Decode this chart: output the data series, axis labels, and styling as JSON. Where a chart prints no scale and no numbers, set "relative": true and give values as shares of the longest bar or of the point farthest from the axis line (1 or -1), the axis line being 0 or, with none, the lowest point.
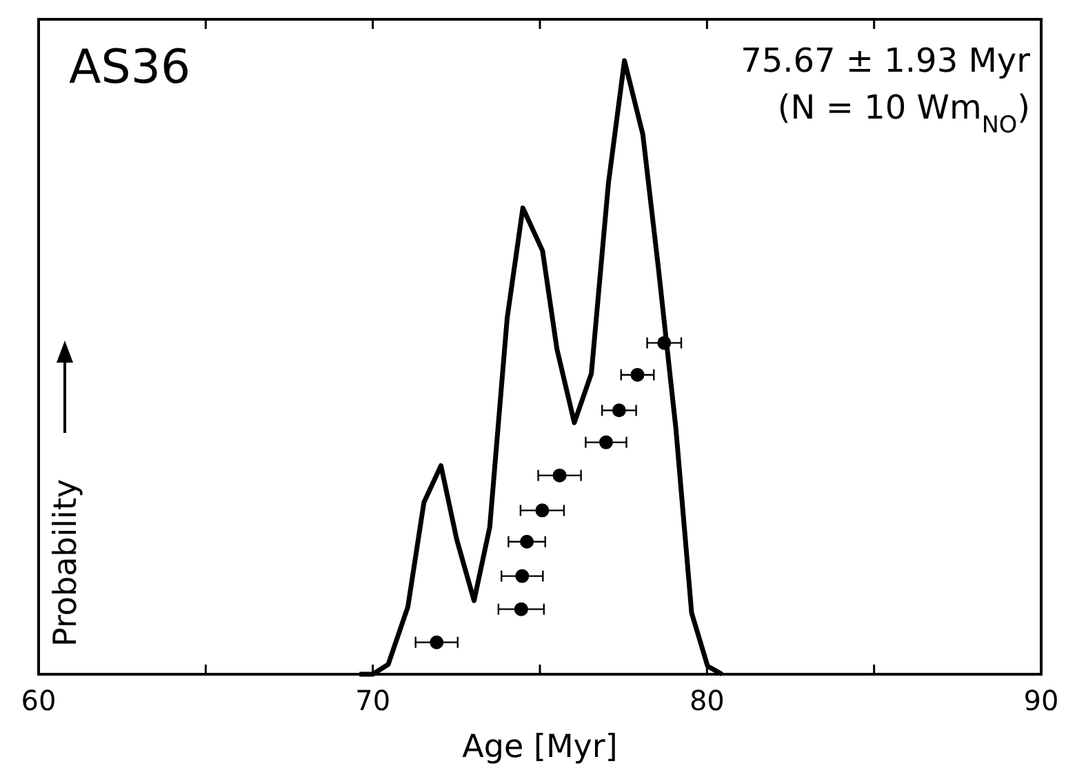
{
  "chart_data": {
    "type": "line",
    "relative": true,
    "xlabel": "Age [Myr]",
    "ylabel": "Probability",
    "xlim": [
      60,
      90
    ],
    "xticks": [
      60,
      {
        "value": 65,
        "label": null
      },
      70,
      {
        "value": 75,
        "label": null
      },
      80,
      {
        "value": 85,
        "label": null
      },
      90
    ],
    "grid": false,
    "annotations": [
      "AS36",
      "75.67 ± 1.93 Myr",
      "(N = 10 Wm$_{NO}$)"
    ],
    "series": [
      {
        "color": "#000000",
        "marker": "none",
        "x": [
          69.6,
          70.0,
          70.46,
          71.05,
          71.53,
          72.04,
          72.51,
          73.03,
          73.5,
          74.02,
          74.49,
          75.08,
          75.51,
          76.03,
          76.54,
          77.05,
          77.53,
          78.08,
          78.55,
          79.07,
          79.54,
          80.02,
          80.45
        ],
        "values": [
          0,
          0,
          0.016,
          0.11,
          0.28,
          0.34,
          0.22,
          0.12,
          0.24,
          0.58,
          0.76,
          0.69,
          0.53,
          0.41,
          0.49,
          0.8,
          1,
          0.88,
          0.66,
          0.4,
          0.1,
          0.013,
          0
        ]
      },
      {
        "type": "scatter",
        "color": "#000000",
        "marker": "circle",
        "x": [
          71.91,
          74.44,
          74.47,
          74.61,
          75.07,
          75.59,
          76.98,
          77.37,
          77.92,
          78.72
        ],
        "values": [
          0.052,
          0.106,
          0.16,
          0.216,
          0.267,
          0.324,
          0.378,
          0.43,
          0.488,
          0.54
        ],
        "xerrors": [
          0.63,
          0.68,
          0.62,
          0.55,
          0.65,
          0.64,
          0.61,
          0.51,
          0.49,
          0.51
        ]
      }
    ]
  }
}
